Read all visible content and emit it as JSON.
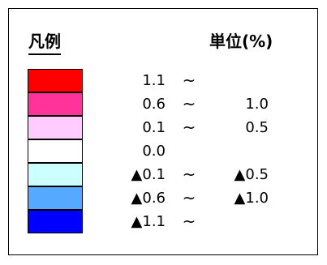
{
  "legend": {
    "title": "凡例",
    "unit": "単位(%)",
    "rows": [
      {
        "color": "#ff0000",
        "low": "1.1",
        "tilde": "~",
        "high": ""
      },
      {
        "color": "#ff3399",
        "low": "0.6",
        "tilde": "~",
        "high": "1.0"
      },
      {
        "color": "#ffccff",
        "low": "0.1",
        "tilde": "~",
        "high": "0.5"
      },
      {
        "color": "#ffffff",
        "low": "0.0",
        "tilde": "",
        "high": ""
      },
      {
        "color": "#ccffff",
        "low": "▲0.1",
        "tilde": "~",
        "high": "▲0.5"
      },
      {
        "color": "#55aaff",
        "low": "▲0.6",
        "tilde": "~",
        "high": "▲1.0"
      },
      {
        "color": "#0000ff",
        "low": "▲1.1",
        "tilde": "~",
        "high": ""
      }
    ]
  }
}
